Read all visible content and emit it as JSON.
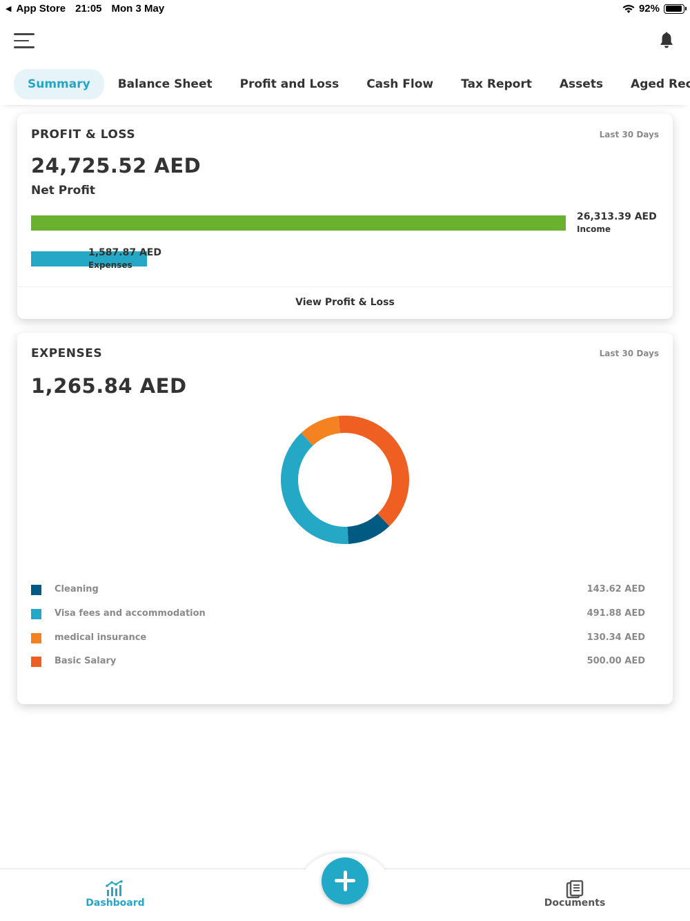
{
  "status_bar": {
    "source_app": "App Store",
    "time": "21:05",
    "date": "Mon 3 May",
    "battery": "92%",
    "battery_level": 0.92
  },
  "header": {
    "menu_icon": "hamburger-icon",
    "notification_icon": "bell-icon"
  },
  "tabs": [
    {
      "label": "Summary",
      "active": true
    },
    {
      "label": "Balance Sheet",
      "active": false
    },
    {
      "label": "Profit and Loss",
      "active": false
    },
    {
      "label": "Cash Flow",
      "active": false
    },
    {
      "label": "Tax Report",
      "active": false
    },
    {
      "label": "Assets",
      "active": false
    },
    {
      "label": "Aged Receiv",
      "active": false
    }
  ],
  "profit_loss": {
    "title": "PROFIT & LOSS",
    "period": "Last 30 Days",
    "amount": "24,725.52 AED",
    "amount_label": "Net Profit",
    "income_value": "26,313.39 AED",
    "income_label": "Income",
    "income_amount": 26313.39,
    "expenses_value": "1,587.87 AED",
    "expenses_label": "Expenses",
    "expenses_amount": 1587.87,
    "link_label": "View Profit & Loss",
    "colors": {
      "income": "#6ab12f",
      "expenses": "#25a8c5"
    }
  },
  "expenses": {
    "title": "EXPENSES",
    "period": "Last 30 Days",
    "amount": "1,265.84 AED",
    "items": [
      {
        "name": "Cleaning",
        "value": "143.62 AED",
        "color": "#005a82"
      },
      {
        "name": "Visa fees and accommodation",
        "value": "491.88 AED",
        "color": "#25a8c5"
      },
      {
        "name": "medical insurance",
        "value": "130.34 AED",
        "color": "#f58220"
      },
      {
        "name": "Basic Salary",
        "value": "500.00 AED",
        "color": "#f05f22"
      }
    ]
  },
  "chart_data": {
    "type": "pie",
    "donut": true,
    "categories": [
      "Cleaning",
      "Visa fees and accommodation",
      "medical insurance",
      "Basic Salary"
    ],
    "values": [
      143.62,
      491.88,
      130.34,
      500.0
    ],
    "colors": [
      "#005a82",
      "#25a8c5",
      "#f58220",
      "#f05f22"
    ],
    "title": "",
    "legend": "bottom"
  },
  "bottom_nav": {
    "dashboard_label": "Dashboard",
    "dashboard_icon": "bar-chart-icon",
    "documents_label": "Documents",
    "documents_icon": "documents-icon",
    "add_icon": "plus-icon",
    "active_color": "#26a5c7"
  }
}
